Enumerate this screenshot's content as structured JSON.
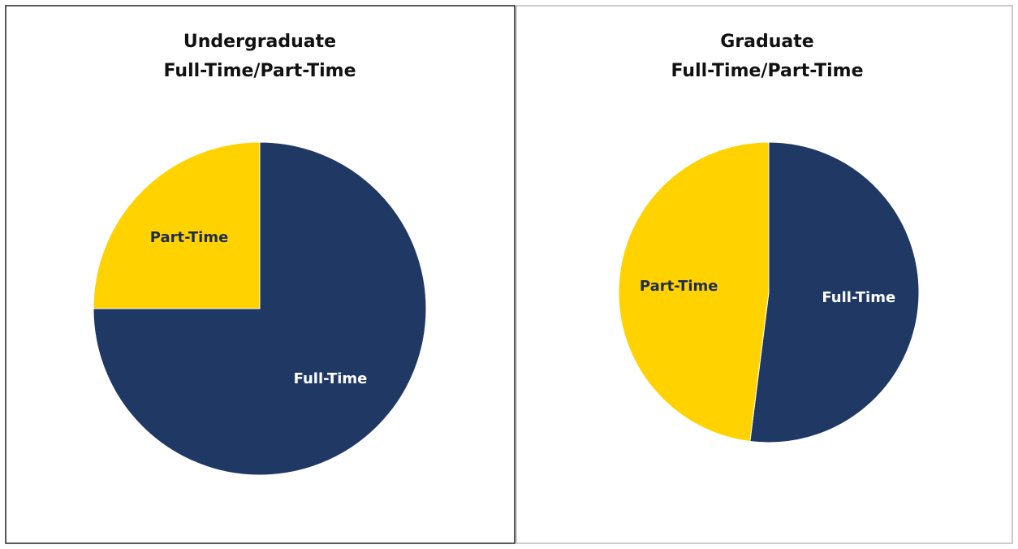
{
  "chart_data": [
    {
      "type": "pie",
      "title": "Undergraduate",
      "subtitle": "Full-Time/Part-Time",
      "categories": [
        "Full-Time",
        "Part-Time"
      ],
      "values": [
        75,
        25
      ],
      "colors": [
        "#1f3864",
        "#ffd200"
      ]
    },
    {
      "type": "pie",
      "title": "Graduate",
      "subtitle": "Full-Time/Part-Time",
      "categories": [
        "Full-Time",
        "Part-Time"
      ],
      "values": [
        52,
        48
      ],
      "colors": [
        "#1f3864",
        "#ffd200"
      ]
    }
  ]
}
